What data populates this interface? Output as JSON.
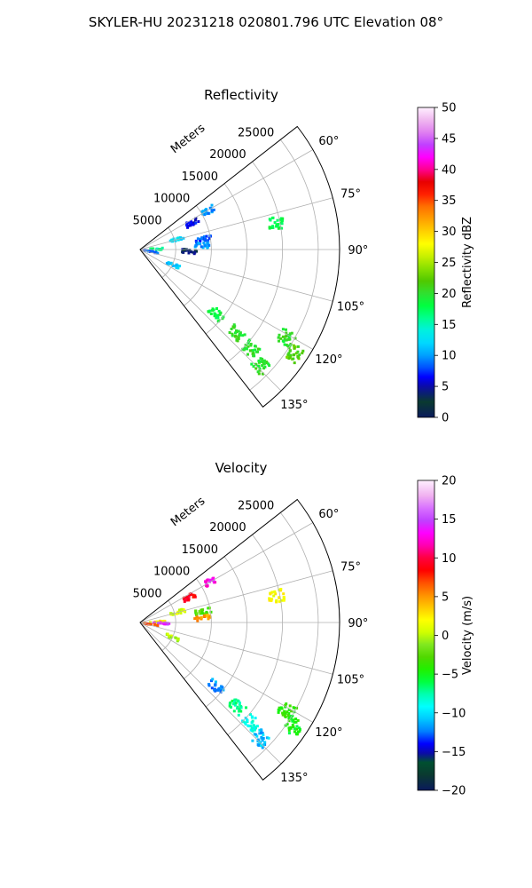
{
  "figure": {
    "suptitle": "SKYLER-HU  20231218  020801.796 UTC Elevation 08°"
  },
  "chart_data": [
    {
      "type": "polar-sector",
      "title": "Reflectivity",
      "radial_label": "Meters",
      "radial_ticks": [
        "5000",
        "10000",
        "15000",
        "20000",
        "25000"
      ],
      "radial_values": [
        5000,
        10000,
        15000,
        20000,
        25000
      ],
      "rmax": 28000,
      "angle_ticks": [
        "60°",
        "75°",
        "90°",
        "105°",
        "120°",
        "135°"
      ],
      "angle_values": [
        60,
        75,
        90,
        105,
        120,
        135
      ],
      "azimuth_range": [
        52,
        142
      ],
      "grid": true,
      "colorbar": {
        "label": "Reflectivity dBZ",
        "ticks": [
          "0",
          "5",
          "10",
          "15",
          "20",
          "25",
          "30",
          "35",
          "40",
          "45",
          "50"
        ],
        "range": [
          0,
          50
        ]
      },
      "echoes": [
        {
          "az": 60,
          "r": 11000,
          "value": 10
        },
        {
          "az": 63,
          "r": 8000,
          "value": 6
        },
        {
          "az": 75,
          "r": 5500,
          "value": 12
        },
        {
          "az": 80,
          "r": 9000,
          "value": 8
        },
        {
          "az": 86,
          "r": 8800,
          "value": 10
        },
        {
          "az": 88,
          "r": 2500,
          "value": 16
        },
        {
          "az": 92,
          "r": 7000,
          "value": 4
        },
        {
          "az": 100,
          "r": 1500,
          "value": 8
        },
        {
          "az": 115,
          "r": 5000,
          "value": 12
        },
        {
          "az": 79,
          "r": 19500,
          "value": 18
        },
        {
          "az": 130,
          "r": 14000,
          "value": 18
        },
        {
          "az": 131,
          "r": 18000,
          "value": 20
        },
        {
          "az": 132,
          "r": 21000,
          "value": 20
        },
        {
          "az": 134,
          "r": 23500,
          "value": 20
        },
        {
          "az": 121,
          "r": 24000,
          "value": 20
        },
        {
          "az": 124,
          "r": 26000,
          "value": 22
        }
      ]
    },
    {
      "type": "polar-sector",
      "title": "Velocity",
      "radial_label": "Meters",
      "radial_ticks": [
        "5000",
        "10000",
        "15000",
        "20000",
        "25000"
      ],
      "radial_values": [
        5000,
        10000,
        15000,
        20000,
        25000
      ],
      "rmax": 28000,
      "angle_ticks": [
        "60°",
        "75°",
        "90°",
        "105°",
        "120°",
        "135°"
      ],
      "angle_values": [
        60,
        75,
        90,
        105,
        120,
        135
      ],
      "azimuth_range": [
        52,
        142
      ],
      "grid": true,
      "colorbar": {
        "label": "Velocity (m/s)",
        "ticks": [
          "−20",
          "−15",
          "−10",
          "−5",
          "0",
          "5",
          "10",
          "15",
          "20"
        ],
        "range": [
          -20,
          20
        ]
      },
      "echoes": [
        {
          "az": 60,
          "r": 11000,
          "value": 13
        },
        {
          "az": 63,
          "r": 8000,
          "value": 9
        },
        {
          "az": 75,
          "r": 5500,
          "value": 1
        },
        {
          "az": 80,
          "r": 9000,
          "value": -3
        },
        {
          "az": 86,
          "r": 8800,
          "value": 5
        },
        {
          "az": 88,
          "r": 2500,
          "value": 2
        },
        {
          "az": 92,
          "r": 3000,
          "value": 14
        },
        {
          "az": 100,
          "r": 1500,
          "value": 7
        },
        {
          "az": 115,
          "r": 5000,
          "value": 0
        },
        {
          "az": 79,
          "r": 19500,
          "value": 2
        },
        {
          "az": 130,
          "r": 14000,
          "value": -12
        },
        {
          "az": 131,
          "r": 18000,
          "value": -7
        },
        {
          "az": 132,
          "r": 21000,
          "value": -9
        },
        {
          "az": 134,
          "r": 23500,
          "value": -11
        },
        {
          "az": 121,
          "r": 24000,
          "value": -4
        },
        {
          "az": 124,
          "r": 26000,
          "value": -5
        }
      ]
    }
  ]
}
